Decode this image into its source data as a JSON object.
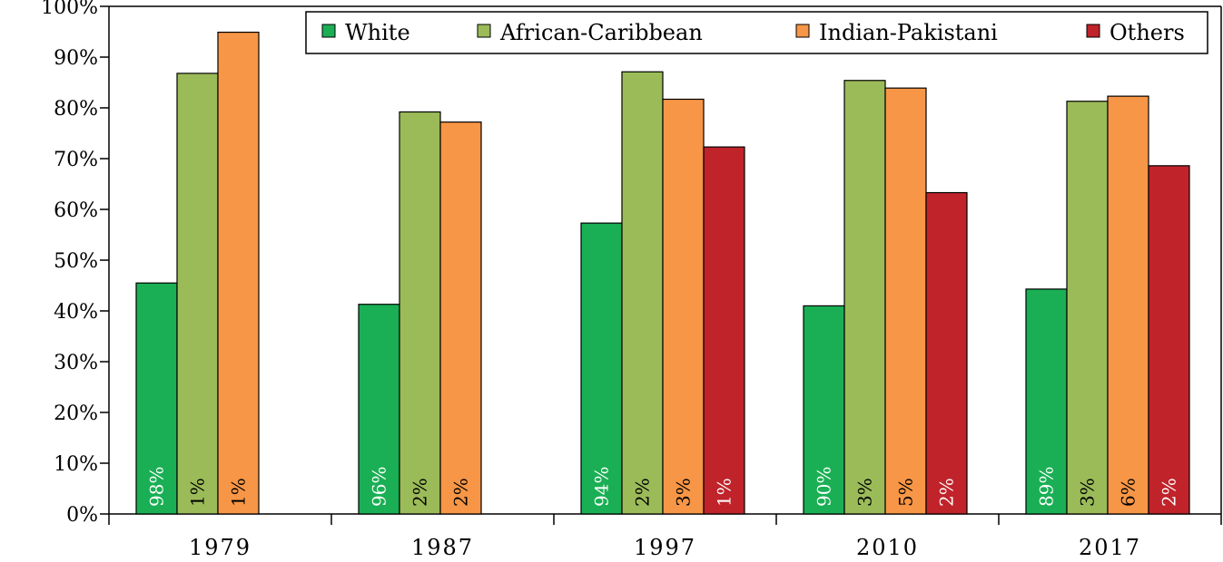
{
  "chart_data": {
    "type": "bar",
    "categories": [
      "1979",
      "1987",
      "1997",
      "2010",
      "2017"
    ],
    "ylim": [
      0,
      100
    ],
    "yticks": [
      "0%",
      "10%",
      "20%",
      "30%",
      "40%",
      "50%",
      "60%",
      "70%",
      "80%",
      "90%",
      "100%"
    ],
    "grid": false,
    "legend": "top-right",
    "series": [
      {
        "name": "White",
        "color": "#1aaf54",
        "values": [
          45.5,
          41.3,
          57.3,
          41.0,
          44.3
        ],
        "labels": [
          "98%",
          "96%",
          "94%",
          "90%",
          "89%"
        ],
        "label_color": "#ffffff"
      },
      {
        "name": "African-Caribbean",
        "color": "#9bbb59",
        "values": [
          86.8,
          79.2,
          87.1,
          85.4,
          81.3
        ],
        "labels": [
          "1%",
          "2%",
          "2%",
          "3%",
          "3%"
        ],
        "label_color": "#000000"
      },
      {
        "name": "Indian-Pakistani",
        "color": "#f79646",
        "values": [
          94.9,
          77.2,
          81.7,
          83.9,
          82.3
        ],
        "labels": [
          "1%",
          "2%",
          "3%",
          "5%",
          "6%"
        ],
        "label_color": "#000000"
      },
      {
        "name": "Others",
        "color": "#c0232a",
        "values": [
          null,
          null,
          72.3,
          63.3,
          68.6
        ],
        "labels": [
          null,
          null,
          "1%",
          "2%",
          "2%"
        ],
        "label_color": "#ffffff"
      }
    ]
  }
}
